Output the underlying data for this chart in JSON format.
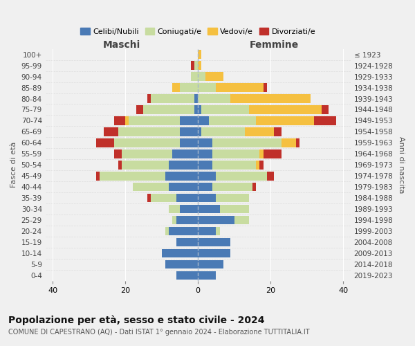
{
  "age_groups": [
    "0-4",
    "5-9",
    "10-14",
    "15-19",
    "20-24",
    "25-29",
    "30-34",
    "35-39",
    "40-44",
    "45-49",
    "50-54",
    "55-59",
    "60-64",
    "65-69",
    "70-74",
    "75-79",
    "80-84",
    "85-89",
    "90-94",
    "95-99",
    "100+"
  ],
  "birth_years": [
    "2019-2023",
    "2014-2018",
    "2009-2013",
    "2004-2008",
    "1999-2003",
    "1994-1998",
    "1989-1993",
    "1984-1988",
    "1979-1983",
    "1974-1978",
    "1969-1973",
    "1964-1968",
    "1959-1963",
    "1954-1958",
    "1949-1953",
    "1944-1948",
    "1939-1943",
    "1934-1938",
    "1929-1933",
    "1924-1928",
    "≤ 1923"
  ],
  "colors": {
    "celibi": "#4a7ab5",
    "coniugati": "#c8dca0",
    "vedovi": "#f5c040",
    "divorziati": "#c0302a"
  },
  "maschi": {
    "celibi": [
      6,
      9,
      10,
      6,
      8,
      6,
      5,
      6,
      8,
      9,
      8,
      7,
      5,
      5,
      5,
      1,
      1,
      0,
      0,
      0,
      0
    ],
    "coniugati": [
      0,
      0,
      0,
      0,
      1,
      1,
      3,
      7,
      10,
      18,
      13,
      14,
      18,
      17,
      14,
      14,
      12,
      5,
      2,
      1,
      0
    ],
    "vedovi": [
      0,
      0,
      0,
      0,
      0,
      0,
      0,
      0,
      0,
      0,
      0,
      0,
      0,
      0,
      1,
      0,
      0,
      2,
      0,
      0,
      0
    ],
    "divorziati": [
      0,
      0,
      0,
      0,
      0,
      0,
      0,
      1,
      0,
      1,
      1,
      2,
      5,
      4,
      3,
      2,
      1,
      0,
      0,
      1,
      0
    ]
  },
  "femmine": {
    "celibi": [
      5,
      7,
      9,
      9,
      5,
      10,
      6,
      5,
      4,
      5,
      4,
      4,
      4,
      1,
      3,
      1,
      0,
      0,
      0,
      0,
      0
    ],
    "coniugati": [
      0,
      0,
      0,
      0,
      1,
      4,
      8,
      9,
      11,
      14,
      12,
      13,
      19,
      12,
      13,
      13,
      9,
      5,
      2,
      0,
      0
    ],
    "vedovi": [
      0,
      0,
      0,
      0,
      0,
      0,
      0,
      0,
      0,
      0,
      1,
      1,
      4,
      8,
      16,
      20,
      22,
      13,
      5,
      1,
      1
    ],
    "divorziati": [
      0,
      0,
      0,
      0,
      0,
      0,
      0,
      0,
      1,
      2,
      1,
      5,
      1,
      2,
      6,
      2,
      0,
      1,
      0,
      0,
      0
    ]
  },
  "title": "Popolazione per età, sesso e stato civile - 2024",
  "subtitle": "COMUNE DI CAPESTRANO (AQ) - Dati ISTAT 1° gennaio 2024 - Elaborazione TUTTITALIA.IT",
  "ylabel_left": "Fasce di età",
  "ylabel_right": "Anni di nascita",
  "xlabel_maschi": "Maschi",
  "xlabel_femmine": "Femmine",
  "xlim": 42,
  "background_color": "#f0f0f0"
}
